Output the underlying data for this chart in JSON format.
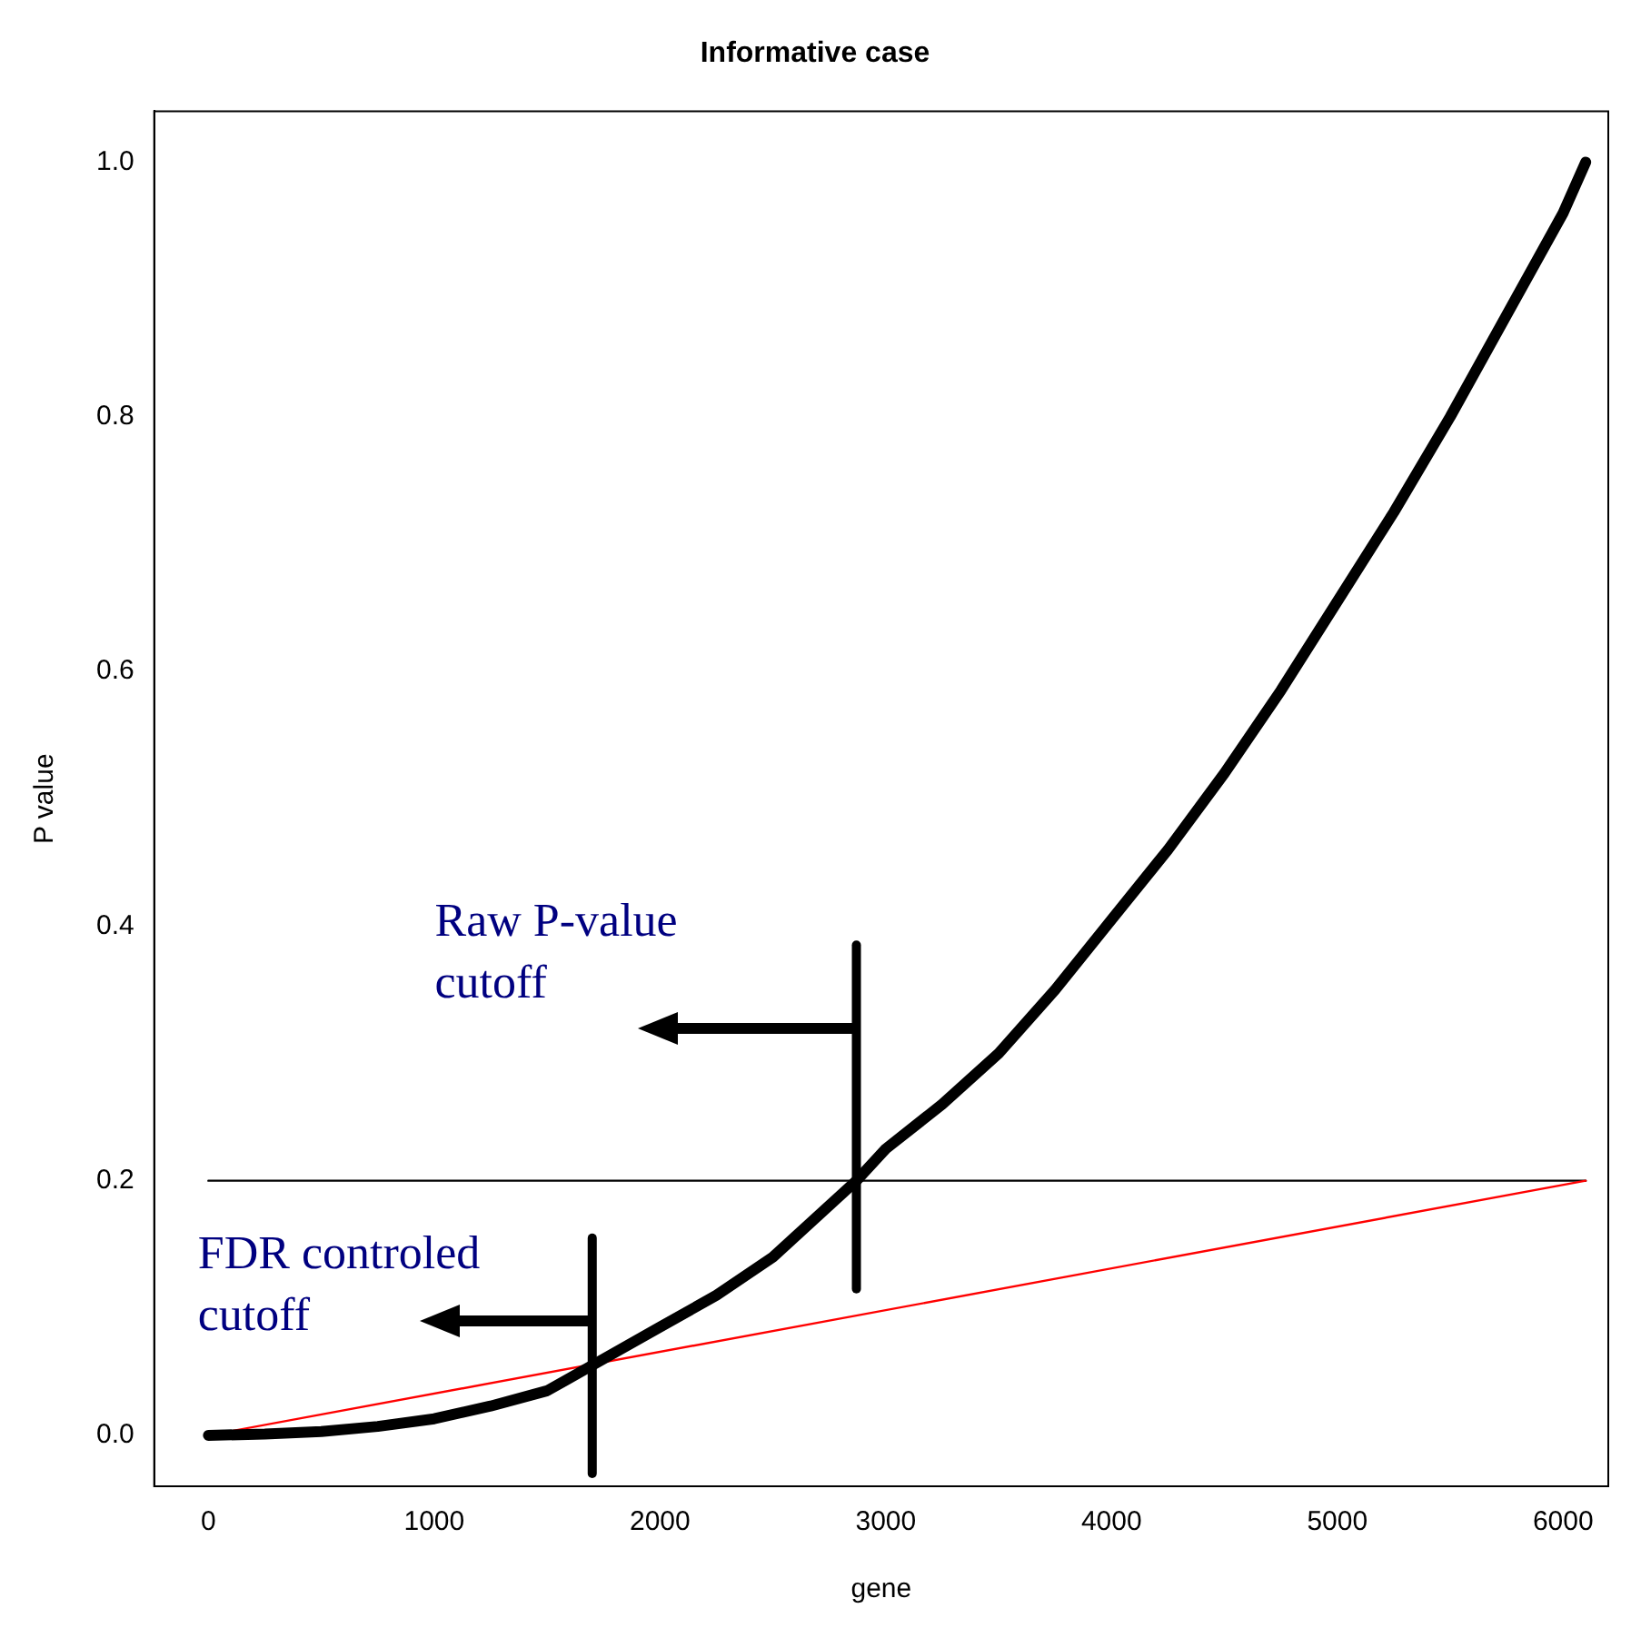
{
  "chart_data": {
    "type": "line",
    "title": "Informative case",
    "xlabel": "gene",
    "ylabel": "P value",
    "xlim": [
      -240,
      6200
    ],
    "ylim": [
      -0.04,
      1.04
    ],
    "xticks": [
      0,
      1000,
      2000,
      3000,
      4000,
      5000,
      6000
    ],
    "yticks": [
      {
        "value": 0,
        "label": "0.0"
      },
      0.2,
      0.4,
      0.6,
      0.8,
      {
        "value": 1,
        "label": "1.0"
      }
    ],
    "grid": false,
    "legend": false,
    "marker": "none",
    "line_style": "solid",
    "series": [
      {
        "color": "#000000",
        "x": [
          0,
          250,
          500,
          750,
          1000,
          1250,
          1500,
          1700,
          2000,
          2250,
          2500,
          2870,
          3000,
          3250,
          3500,
          3750,
          4000,
          4250,
          4500,
          4750,
          5000,
          5250,
          5500,
          5750,
          6000,
          6100
        ],
        "values": [
          0,
          0.001,
          0.003,
          0.007,
          0.013,
          0.023,
          0.035,
          0.055,
          0.085,
          0.11,
          0.14,
          0.2,
          0.225,
          0.26,
          0.3,
          0.35,
          0.405,
          0.46,
          0.52,
          0.585,
          0.655,
          0.725,
          0.8,
          0.88,
          0.96,
          1.0
        ]
      },
      {
        "color": "#ff0000",
        "x": [
          0,
          6100
        ],
        "values": [
          0,
          0.2
        ]
      },
      {
        "color": "#000000",
        "x": [
          0,
          6100
        ],
        "values": [
          0.2,
          0.2
        ]
      },
      {
        "color": "#000000",
        "x": [
          1700,
          1700
        ],
        "values": [
          -0.03,
          0.155
        ]
      },
      {
        "color": "#000000",
        "x": [
          2870,
          2870
        ],
        "values": [
          0.115,
          0.385
        ]
      }
    ],
    "annotations": [
      {
        "text": "Raw P-value cutoff",
        "x": 2870,
        "y": 0.32
      },
      {
        "text": "FDR controled cutoff",
        "x": 1700,
        "y": 0.09
      }
    ]
  }
}
